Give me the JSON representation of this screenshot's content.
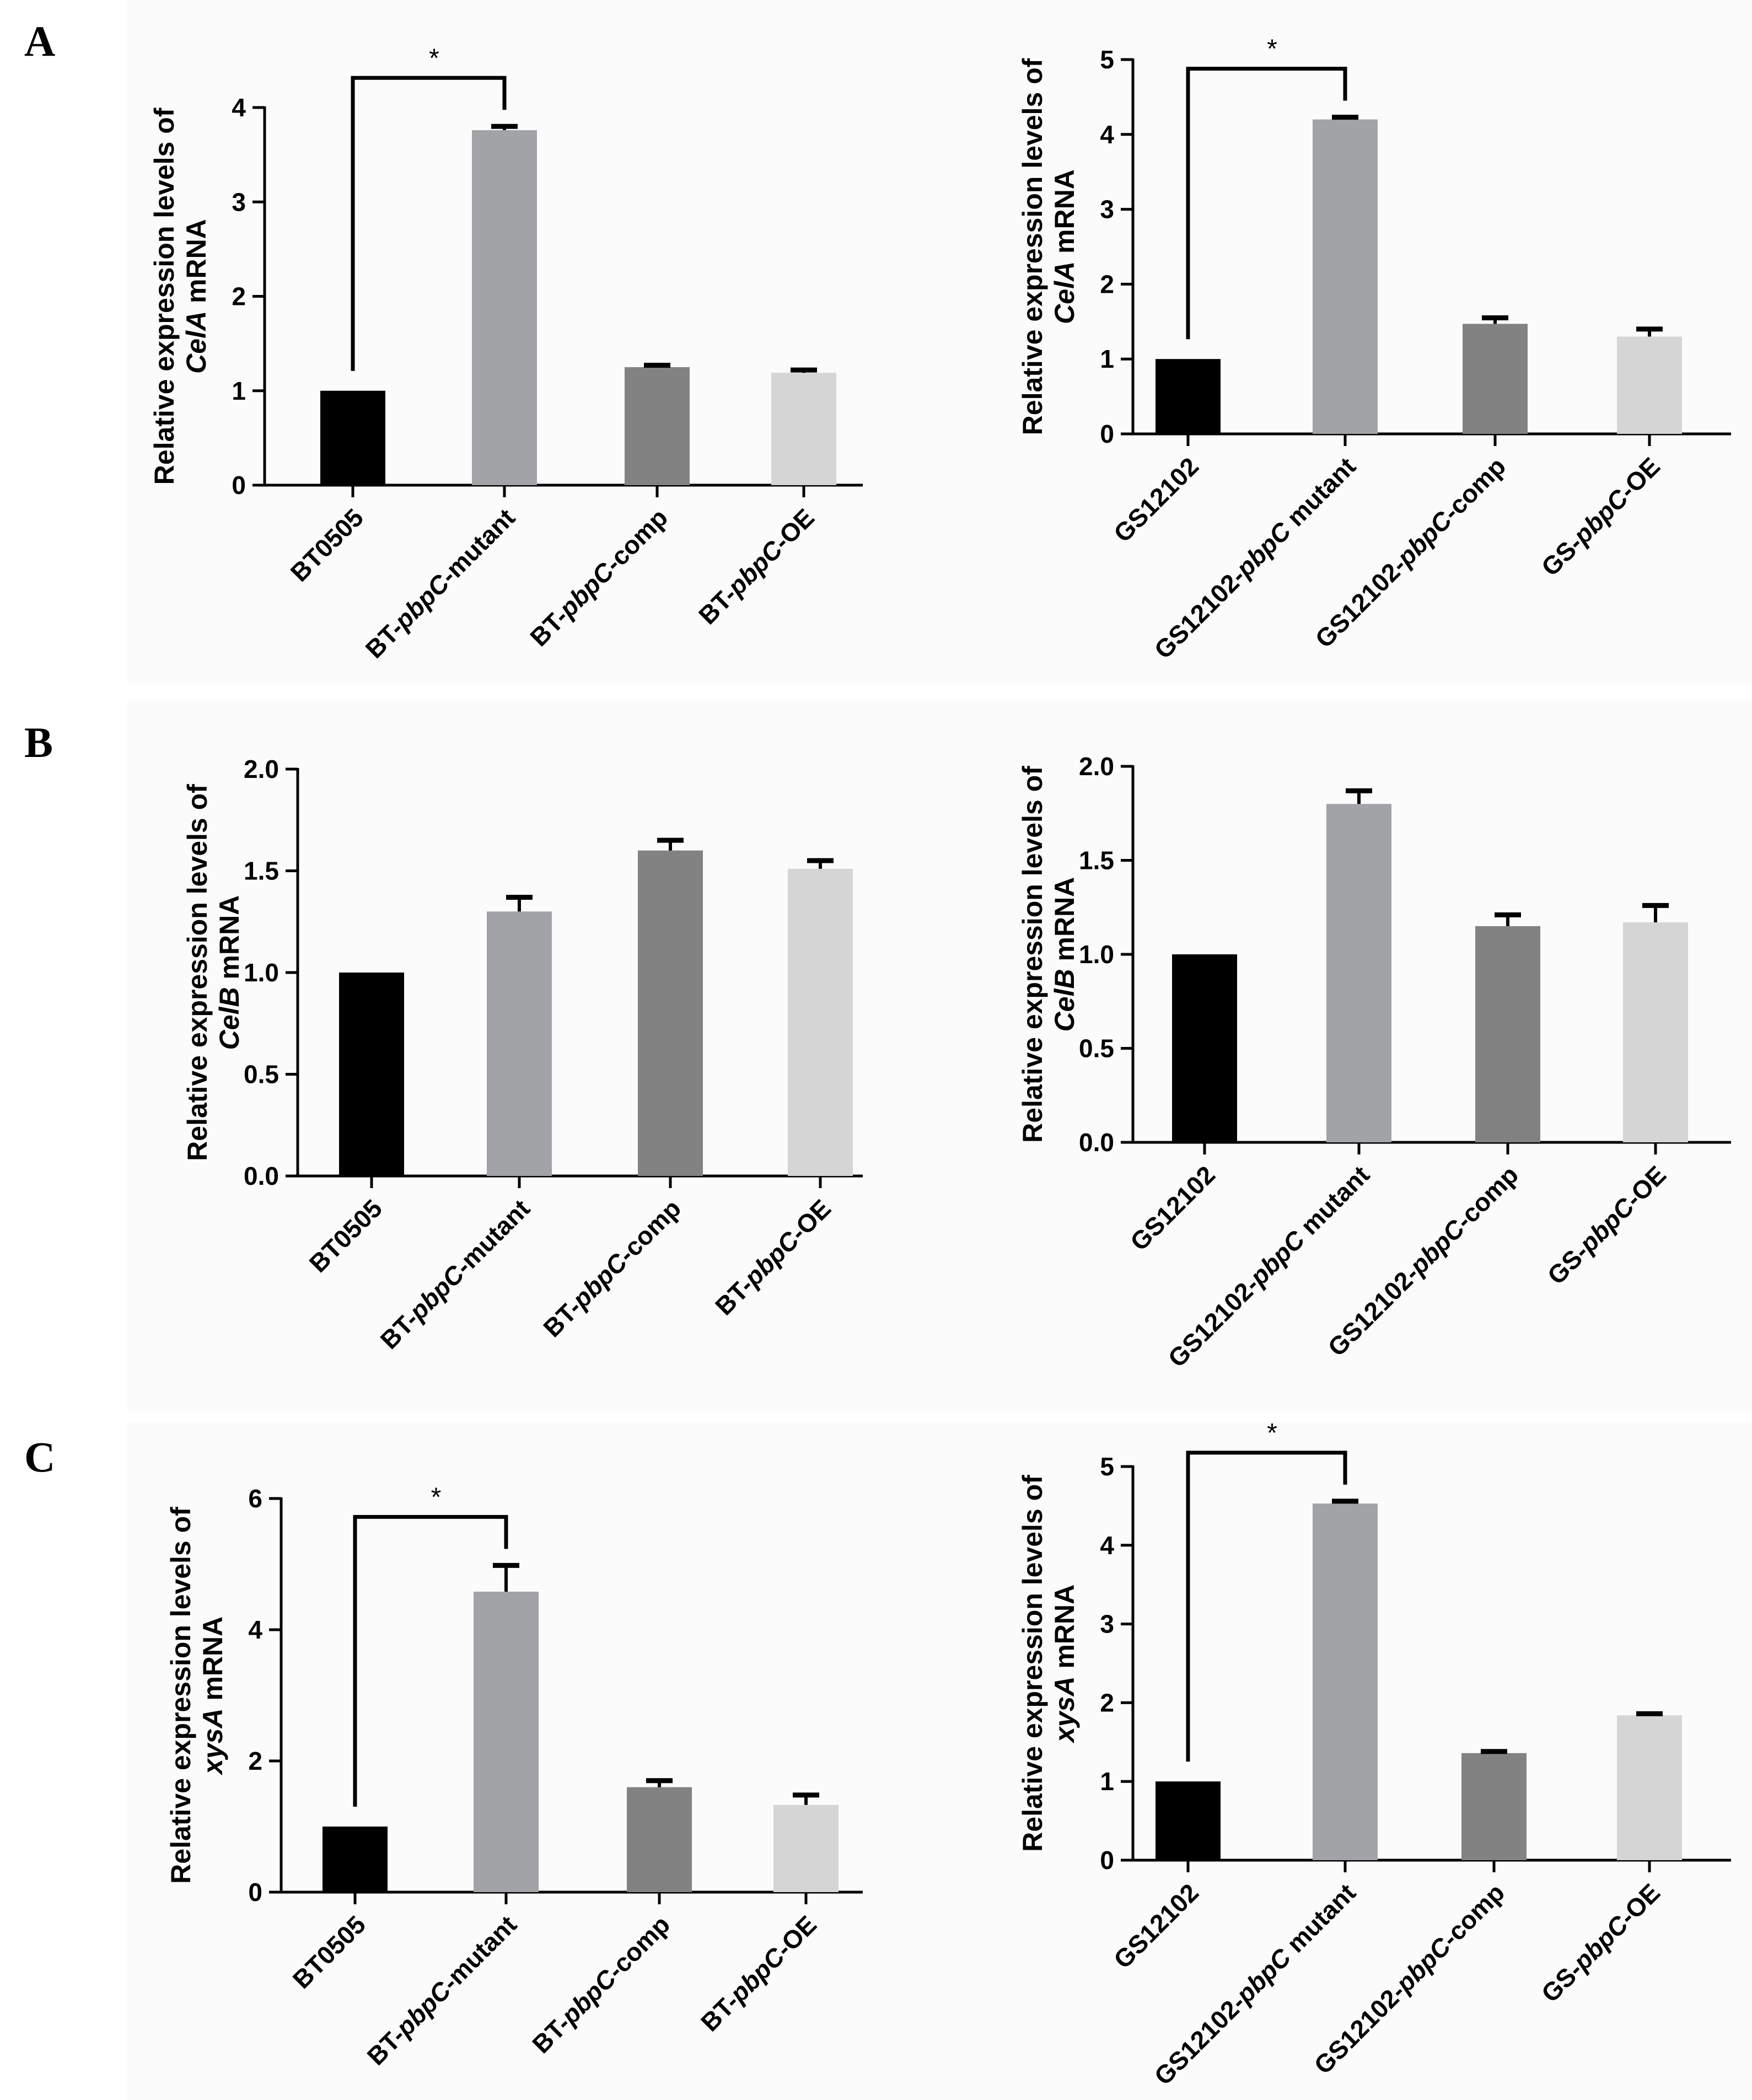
{
  "panels": [
    {
      "letter": "A"
    },
    {
      "letter": "B"
    },
    {
      "letter": "C"
    }
  ],
  "colors": {
    "bar1": "#000000",
    "bar2": "#a2a3a6",
    "bar3": "#828282",
    "bar4": "#d5d5d5",
    "axis": "#000000"
  },
  "chart_data": [
    {
      "type": "bar",
      "panel": "A",
      "side": "left",
      "ylabel_line1": "Relative expression levels of",
      "ylabel_line2": [
        {
          "t": "CelA",
          "i": true
        },
        {
          "t": " mRNA",
          "i": false
        }
      ],
      "ylim": [
        0,
        4
      ],
      "ticks": [
        "0",
        "1",
        "2",
        "3",
        "4"
      ],
      "tick_values": [
        0,
        1,
        2,
        3,
        4
      ],
      "categories": [
        [
          {
            "t": "BT0505",
            "i": false
          }
        ],
        [
          {
            "t": "BT-",
            "i": false
          },
          {
            "t": "pbpC",
            "i": true
          },
          {
            "t": "-mutant",
            "i": false
          }
        ],
        [
          {
            "t": "BT-",
            "i": false
          },
          {
            "t": "pbpC",
            "i": true
          },
          {
            "t": "-comp",
            "i": false
          }
        ],
        [
          {
            "t": "BT-",
            "i": false
          },
          {
            "t": "pbpC",
            "i": true
          },
          {
            "t": "-OE",
            "i": false
          }
        ]
      ],
      "values": [
        1.0,
        3.76,
        1.25,
        1.19
      ],
      "errors": [
        0,
        0.04,
        0.02,
        0.03
      ],
      "significance": {
        "from": 0,
        "to": 1,
        "label": "*"
      }
    },
    {
      "type": "bar",
      "panel": "A",
      "side": "right",
      "ylabel_line1": "Relative expression levels of",
      "ylabel_line2": [
        {
          "t": "CelA",
          "i": true
        },
        {
          "t": " mRNA",
          "i": false
        }
      ],
      "ylim": [
        0,
        5
      ],
      "ticks": [
        "0",
        "1",
        "2",
        "3",
        "4",
        "5"
      ],
      "tick_values": [
        0,
        1,
        2,
        3,
        4,
        5
      ],
      "categories": [
        [
          {
            "t": "GS12102",
            "i": false
          }
        ],
        [
          {
            "t": "GS12102-",
            "i": false
          },
          {
            "t": "pbpC",
            "i": true
          },
          {
            "t": " mutant",
            "i": false
          }
        ],
        [
          {
            "t": "GS12102-",
            "i": false
          },
          {
            "t": "pbpC",
            "i": true
          },
          {
            "t": "-comp",
            "i": false
          }
        ],
        [
          {
            "t": "GS-",
            "i": false
          },
          {
            "t": "pbpC",
            "i": true
          },
          {
            "t": "-OE",
            "i": false
          }
        ]
      ],
      "values": [
        1.0,
        4.2,
        1.47,
        1.3
      ],
      "errors": [
        0,
        0.03,
        0.08,
        0.1
      ],
      "significance": {
        "from": 0,
        "to": 1,
        "label": "*"
      }
    },
    {
      "type": "bar",
      "panel": "B",
      "side": "left",
      "ylabel_line1": "Relative expression levels of",
      "ylabel_line2": [
        {
          "t": "CelB",
          "i": true
        },
        {
          "t": " mRNA",
          "i": false
        }
      ],
      "ylim": [
        0,
        2.0
      ],
      "ticks": [
        "0.0",
        "0.5",
        "1.0",
        "1.5",
        "2.0"
      ],
      "tick_values": [
        0,
        0.5,
        1.0,
        1.5,
        2.0
      ],
      "categories": [
        [
          {
            "t": "BT0505",
            "i": false
          }
        ],
        [
          {
            "t": "BT-",
            "i": false
          },
          {
            "t": "pbpC",
            "i": true
          },
          {
            "t": "-mutant",
            "i": false
          }
        ],
        [
          {
            "t": "BT-",
            "i": false
          },
          {
            "t": "pbpC",
            "i": true
          },
          {
            "t": "-comp",
            "i": false
          }
        ],
        [
          {
            "t": "BT-",
            "i": false
          },
          {
            "t": "pbpC",
            "i": true
          },
          {
            "t": "-OE",
            "i": false
          }
        ]
      ],
      "values": [
        1.0,
        1.3,
        1.6,
        1.51
      ],
      "errors": [
        0,
        0.07,
        0.05,
        0.04
      ],
      "significance": null
    },
    {
      "type": "bar",
      "panel": "B",
      "side": "right",
      "ylabel_line1": "Relative expression levels of",
      "ylabel_line2": [
        {
          "t": "CelB",
          "i": true
        },
        {
          "t": " mRNA",
          "i": false
        }
      ],
      "ylim": [
        0,
        2.0
      ],
      "ticks": [
        "0.0",
        "0.5",
        "1.0",
        "1.5",
        "2.0"
      ],
      "tick_values": [
        0,
        0.5,
        1.0,
        1.5,
        2.0
      ],
      "categories": [
        [
          {
            "t": "GS12102",
            "i": false
          }
        ],
        [
          {
            "t": "GS12102-",
            "i": false
          },
          {
            "t": "pbpC",
            "i": true
          },
          {
            "t": " mutant",
            "i": false
          }
        ],
        [
          {
            "t": "GS12102-",
            "i": false
          },
          {
            "t": "pbpC",
            "i": true
          },
          {
            "t": "-comp",
            "i": false
          }
        ],
        [
          {
            "t": "GS-",
            "i": false
          },
          {
            "t": "pbpC",
            "i": true
          },
          {
            "t": "-OE",
            "i": false
          }
        ]
      ],
      "values": [
        1.0,
        1.8,
        1.15,
        1.17
      ],
      "errors": [
        0,
        0.07,
        0.06,
        0.09
      ],
      "significance": null
    },
    {
      "type": "bar",
      "panel": "C",
      "side": "left",
      "ylabel_line1": "Relative expression levels of",
      "ylabel_line2": [
        {
          "t": "xysA",
          "i": true
        },
        {
          "t": " mRNA",
          "i": false
        }
      ],
      "ylim": [
        0,
        6
      ],
      "ticks": [
        "0",
        "2",
        "4",
        "6"
      ],
      "tick_values": [
        0,
        2,
        4,
        6
      ],
      "categories": [
        [
          {
            "t": "BT0505",
            "i": false
          }
        ],
        [
          {
            "t": "BT-",
            "i": false
          },
          {
            "t": "pbpC",
            "i": true
          },
          {
            "t": "-mutant",
            "i": false
          }
        ],
        [
          {
            "t": "BT-",
            "i": false
          },
          {
            "t": "pbpC",
            "i": true
          },
          {
            "t": "-comp",
            "i": false
          }
        ],
        [
          {
            "t": "BT-",
            "i": false
          },
          {
            "t": "pbpC",
            "i": true
          },
          {
            "t": "-OE",
            "i": false
          }
        ]
      ],
      "values": [
        1.0,
        4.58,
        1.6,
        1.33
      ],
      "errors": [
        0,
        0.4,
        0.1,
        0.15
      ],
      "significance": {
        "from": 0,
        "to": 1,
        "label": "*"
      }
    },
    {
      "type": "bar",
      "panel": "C",
      "side": "right",
      "ylabel_line1": "Relative expression levels of",
      "ylabel_line2": [
        {
          "t": "xysA",
          "i": true
        },
        {
          "t": " mRNA",
          "i": false
        }
      ],
      "ylim": [
        0,
        5
      ],
      "ticks": [
        "0",
        "1",
        "2",
        "3",
        "4",
        "5"
      ],
      "tick_values": [
        0,
        1,
        2,
        3,
        4,
        5
      ],
      "categories": [
        [
          {
            "t": "GS12102",
            "i": false
          }
        ],
        [
          {
            "t": "GS12102-",
            "i": false
          },
          {
            "t": "pbpC",
            "i": true
          },
          {
            "t": " mutant",
            "i": false
          }
        ],
        [
          {
            "t": "GS12102-",
            "i": false
          },
          {
            "t": "pbpC",
            "i": true
          },
          {
            "t": "-comp",
            "i": false
          }
        ],
        [
          {
            "t": "GS-",
            "i": false
          },
          {
            "t": "pbpC",
            "i": true
          },
          {
            "t": "-OE",
            "i": false
          }
        ]
      ],
      "values": [
        1.0,
        4.53,
        1.36,
        1.84
      ],
      "errors": [
        0,
        0.03,
        0.02,
        0.02
      ],
      "significance": {
        "from": 0,
        "to": 1,
        "label": "*"
      }
    }
  ]
}
